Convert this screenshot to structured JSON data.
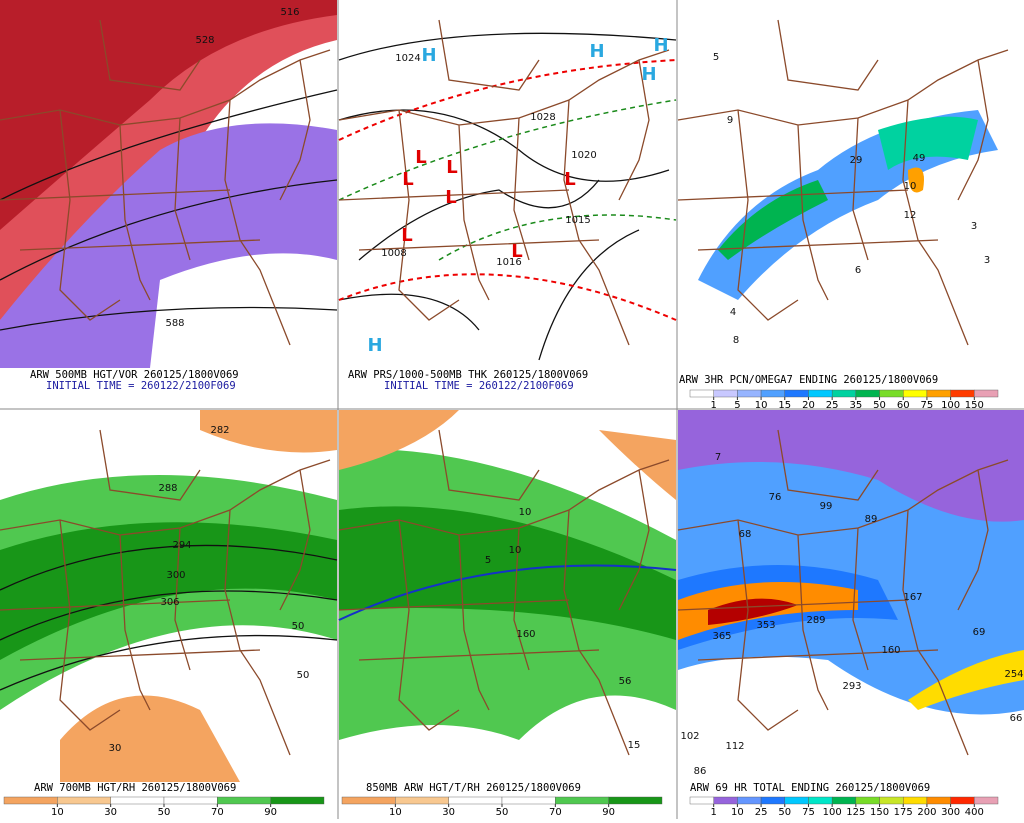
{
  "panels": [
    {
      "title": "ARW 500MB HGT/VOR 260125/1800V069",
      "subtitle": "INITIAL TIME = 260122/2100F069",
      "map_labels": [
        "516",
        "528",
        "588"
      ]
    },
    {
      "title": "ARW PRS/1000-500MB THK 260125/1800V069",
      "subtitle": "INITIAL TIME = 260122/2100F069",
      "map_labels": [
        "H",
        "H",
        "H",
        "H",
        "H",
        "L",
        "L",
        "L",
        "L",
        "L",
        "L",
        "L",
        "1024",
        "1028",
        "1020",
        "1016",
        "1015",
        "1008"
      ]
    },
    {
      "title": "ARW 3HR PCN/OMEGA7 ENDING 260125/1800V069",
      "map_labels": [
        "9",
        "29",
        "49",
        "10",
        "12",
        "3",
        "3",
        "6",
        "4",
        "8",
        "5"
      ],
      "colorbar": {
        "ticks": [
          1,
          5,
          10,
          15,
          20,
          25,
          35,
          50,
          60,
          75,
          100,
          150
        ],
        "colors": [
          "#ffffff",
          "#c8c8ff",
          "#96b4ff",
          "#50a0ff",
          "#1e78ff",
          "#00c8ff",
          "#00d2a0",
          "#00b450",
          "#78dc28",
          "#ffff00",
          "#ffa000",
          "#ff3c00",
          "#e8a0b4"
        ]
      }
    },
    {
      "title": "ARW 700MB HGT/RH 260125/1800V069",
      "map_labels": [
        "282",
        "288",
        "294",
        "300",
        "306",
        "30",
        "50",
        "50"
      ],
      "colorbar": {
        "ticks": [
          10,
          30,
          50,
          70,
          90
        ],
        "colors": [
          "#f4a460",
          "#f8c890",
          "#ffffff",
          "#ffffff",
          "#50c850",
          "#189618"
        ]
      }
    },
    {
      "title": "850MB ARW HGT/T/RH 260125/1800V069",
      "map_labels": [
        "10",
        "10",
        "5",
        "160",
        "56",
        "15"
      ],
      "colorbar": {
        "ticks": [
          10,
          30,
          50,
          70,
          90
        ],
        "colors": [
          "#f4a460",
          "#f8c890",
          "#ffffff",
          "#ffffff",
          "#50c850",
          "#189618"
        ]
      }
    },
    {
      "title": "ARW 69 HR TOTAL ENDING 260125/1800V069",
      "map_labels": [
        "76",
        "99",
        "89",
        "68",
        "365",
        "353",
        "289",
        "167",
        "69",
        "160",
        "293",
        "254",
        "102",
        "112",
        "86",
        "66",
        "7"
      ],
      "colorbar": {
        "ticks": [
          1,
          10,
          25,
          50,
          75,
          100,
          125,
          150,
          175,
          200,
          300,
          400
        ],
        "colors": [
          "#ffffff",
          "#9664dc",
          "#6496ff",
          "#1e78ff",
          "#00c8ff",
          "#00e6c8",
          "#00b450",
          "#78dc28",
          "#c8e628",
          "#ffdc00",
          "#ff8c00",
          "#ff2800",
          "#e8a0b4"
        ]
      }
    }
  ]
}
